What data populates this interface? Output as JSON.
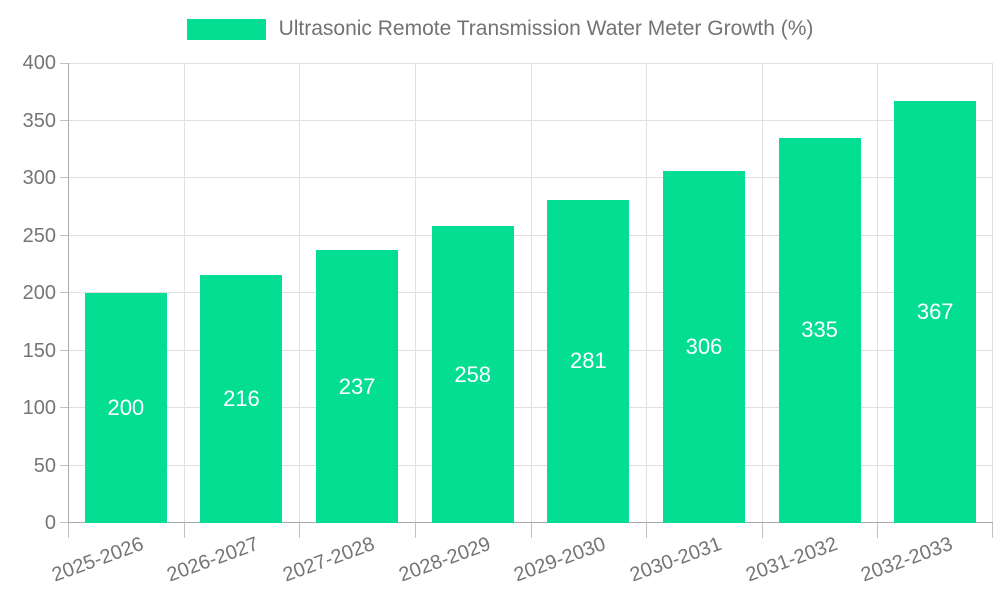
{
  "legend": {
    "label": "Ultrasonic Remote Transmission Water Meter Growth (%)"
  },
  "colors": {
    "bar": "#03DE92",
    "grid": "#e0e0e0",
    "axis": "#ababab",
    "tick": "#c2c2c2",
    "tick_text": "#757575",
    "value_label": "#ffffff",
    "legend_text": "#737373"
  },
  "chart_data": {
    "type": "bar",
    "title": "",
    "categories": [
      "2025-2026",
      "2026-2027",
      "2027-2028",
      "2028-2029",
      "2029-2030",
      "2030-2031",
      "2031-2032",
      "2032-2033"
    ],
    "series": [
      {
        "name": "Ultrasonic Remote Transmission Water Meter Growth (%)",
        "values": [
          200,
          216,
          237,
          258,
          281,
          306,
          335,
          367
        ]
      }
    ],
    "value_labels": [
      "200",
      "216",
      "237",
      "258",
      "281",
      "306",
      "335",
      "367"
    ],
    "xlabel": "",
    "ylabel": "",
    "ylim": [
      0,
      400
    ],
    "yticks": [
      0,
      50,
      100,
      150,
      200,
      250,
      300,
      350,
      400
    ],
    "grid": true,
    "legend_position": "top",
    "value_label_position": "center-inside"
  }
}
